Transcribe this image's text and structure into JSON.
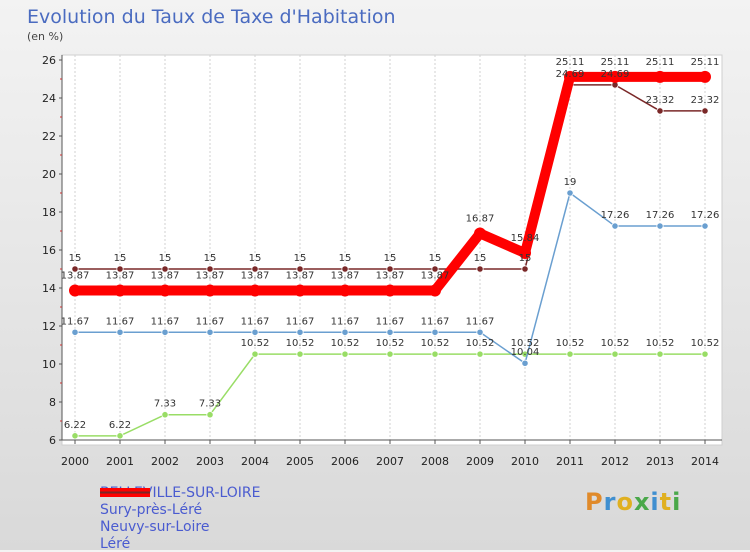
{
  "header": {
    "title": "Evolution du Taux de Taxe d'Habitation",
    "subtitle": "(en %)"
  },
  "logo": {
    "text": "Proxiti"
  },
  "colors": {
    "belleville": "#ff0000",
    "sury": "#6a9fd0",
    "neuvy": "#99dd66",
    "lere": "#7a2828"
  },
  "chart_data": {
    "type": "line",
    "title": "Evolution du Taux de Taxe d'Habitation",
    "ylabel": "(en %)",
    "xlabel": "",
    "categories": [
      "2000",
      "2001",
      "2002",
      "2003",
      "2004",
      "2005",
      "2006",
      "2007",
      "2008",
      "2009",
      "2010",
      "2011",
      "2012",
      "2013",
      "2014"
    ],
    "ylim": [
      6,
      26
    ],
    "yticks": [
      6,
      8,
      10,
      12,
      14,
      16,
      18,
      20,
      22,
      24,
      26
    ],
    "grid": "vertical-dashed",
    "legend_position": "bottom-left",
    "series": [
      {
        "name": "BELLEVILLE-SUR-LOIRE",
        "color": "#ff0000",
        "values": [
          13.87,
          13.87,
          13.87,
          13.87,
          13.87,
          13.87,
          13.87,
          13.87,
          13.87,
          16.87,
          15.84,
          25.11,
          25.11,
          25.11,
          25.11
        ],
        "labels": [
          "13.87",
          "13.87",
          "13.87",
          "13.87",
          "13.87",
          "13.87",
          "13.87",
          "13.87",
          "13.87",
          "16.87",
          "15.84",
          "25.11",
          "25.11",
          "25.11",
          "25.11"
        ]
      },
      {
        "name": "Sury-près-Léré",
        "color": "#6a9fd0",
        "values": [
          11.67,
          11.67,
          11.67,
          11.67,
          11.67,
          11.67,
          11.67,
          11.67,
          11.67,
          11.67,
          10.04,
          19,
          17.26,
          17.26,
          17.26
        ],
        "labels": [
          "11.67",
          "11.67",
          "11.67",
          "11.67",
          "11.67",
          "11.67",
          "11.67",
          "11.67",
          "11.67",
          "11.67",
          "10.04",
          "19",
          "17.26",
          "17.26",
          "17.26"
        ]
      },
      {
        "name": "Neuvy-sur-Loire",
        "color": "#99dd66",
        "values": [
          6.22,
          6.22,
          7.33,
          7.33,
          10.52,
          10.52,
          10.52,
          10.52,
          10.52,
          10.52,
          10.52,
          10.52,
          10.52,
          10.52,
          10.52
        ],
        "labels": [
          "6.22",
          "6.22",
          "7.33",
          "7.33",
          "10.52",
          "10.52",
          "10.52",
          "10.52",
          "10.52",
          "10.52",
          "10.52",
          "10.52",
          "10.52",
          "10.52",
          "10.52"
        ]
      },
      {
        "name": "Léré",
        "color": "#7a2828",
        "values": [
          15,
          15,
          15,
          15,
          15,
          15,
          15,
          15,
          15,
          15,
          15,
          24.69,
          24.69,
          23.32,
          23.32
        ],
        "labels": [
          "15",
          "15",
          "15",
          "15",
          "15",
          "15",
          "15",
          "15",
          "15",
          "15",
          "15",
          "24.69",
          "24.69",
          "23.32",
          "23.32"
        ]
      }
    ]
  }
}
